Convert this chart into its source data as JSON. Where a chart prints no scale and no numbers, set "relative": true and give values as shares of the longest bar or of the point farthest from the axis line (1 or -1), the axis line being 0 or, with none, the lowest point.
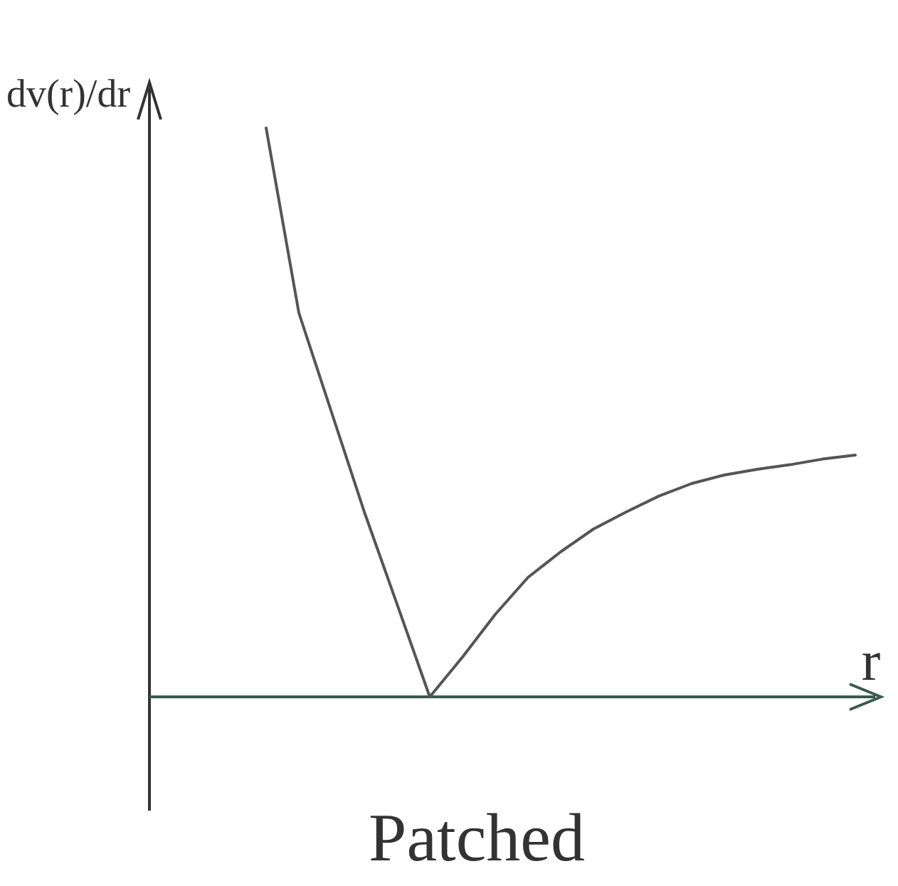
{
  "chart_data": {
    "type": "line",
    "title": "Patched",
    "xlabel": "r",
    "ylabel": "dv(r)/dr",
    "relative": true,
    "color": "#555555",
    "categories": [
      null,
      null,
      null,
      null,
      null,
      null,
      null,
      null,
      null,
      null,
      null,
      null,
      null,
      null,
      null,
      null,
      null,
      null,
      null
    ],
    "values": [
      1,
      0.675,
      0.5,
      0.325,
      0.163,
      0,
      0.07,
      0.145,
      0.21,
      0.255,
      0.295,
      0.325,
      0.353,
      0.375,
      0.39,
      0.4,
      0.408,
      0.418,
      0.425
    ]
  }
}
